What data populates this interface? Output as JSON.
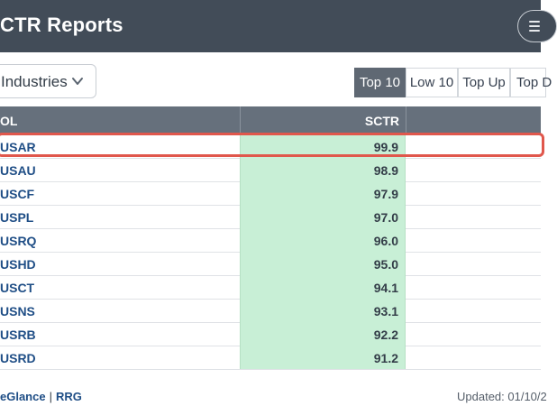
{
  "header": {
    "title": "CTR Reports",
    "menu_icon": "hamburger-icon"
  },
  "filter": {
    "selected": "Industries",
    "icon": "chevron-down-icon"
  },
  "tabs": [
    {
      "label": "Top 10",
      "active": true
    },
    {
      "label": "Low 10",
      "active": false
    },
    {
      "label": "Top Up",
      "active": false
    },
    {
      "label": "Top D",
      "active": false
    }
  ],
  "table": {
    "headers": {
      "symbol": "OL",
      "sctr": "SCTR"
    },
    "rows": [
      {
        "symbol": "USAR",
        "sctr": "99.9"
      },
      {
        "symbol": "USAU",
        "sctr": "98.9"
      },
      {
        "symbol": "USCF",
        "sctr": "97.9"
      },
      {
        "symbol": "USPL",
        "sctr": "97.0"
      },
      {
        "symbol": "USRQ",
        "sctr": "96.0"
      },
      {
        "symbol": "USHD",
        "sctr": "95.0"
      },
      {
        "symbol": "USCT",
        "sctr": "94.1"
      },
      {
        "symbol": "USNS",
        "sctr": "93.1"
      },
      {
        "symbol": "USRB",
        "sctr": "92.2"
      },
      {
        "symbol": "USRD",
        "sctr": "91.2"
      }
    ],
    "highlight_color": "#e0574c",
    "score_fill_color": "#c8efd6"
  },
  "footer": {
    "link1": "eGlance",
    "divider": "|",
    "link2": "RRG",
    "updated": "Updated: 01/10/2"
  },
  "colors": {
    "header_bg": "#424c58",
    "table_head_bg": "#66707c",
    "link": "#1f4e86"
  }
}
